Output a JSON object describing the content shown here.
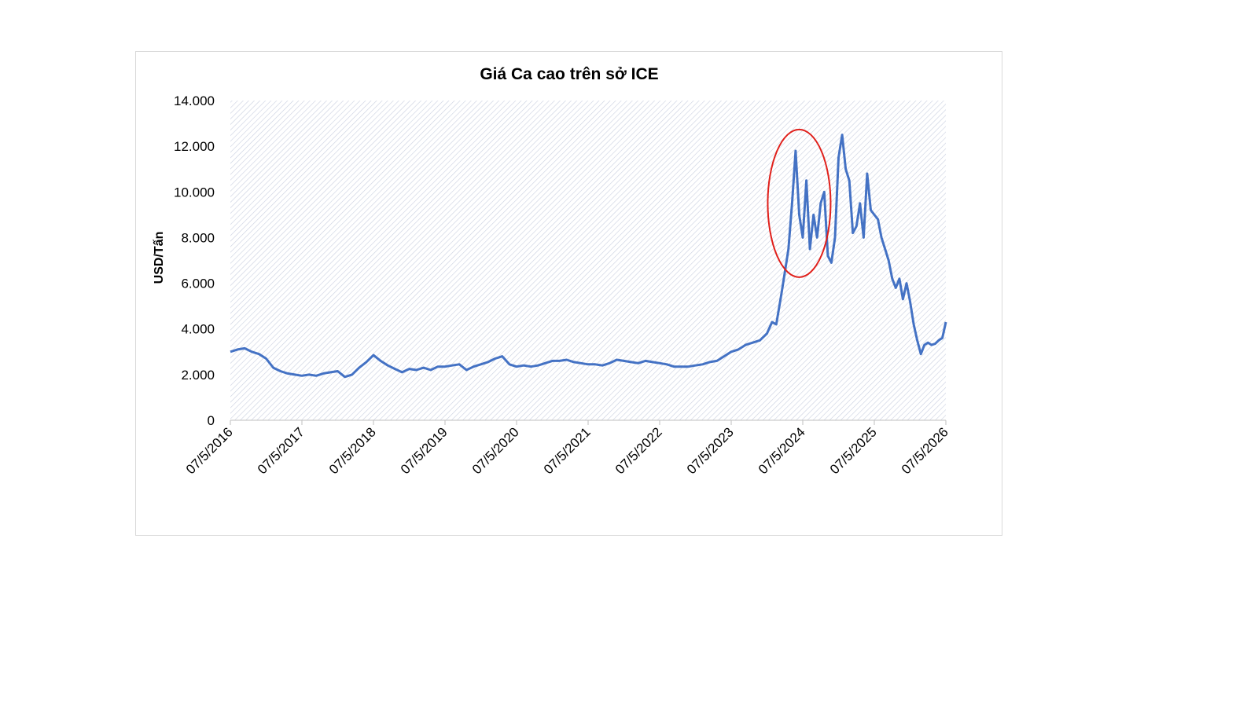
{
  "chart_data": {
    "type": "line",
    "title": "Giá Ca cao trên sở ICE",
    "xlabel": "",
    "ylabel": "USD/Tấn",
    "ylim": [
      0,
      14000
    ],
    "yticks": [
      "0",
      "2.000",
      "4.000",
      "6.000",
      "8.000",
      "10.000",
      "12.000",
      "14.000"
    ],
    "ytick_values": [
      0,
      2000,
      4000,
      6000,
      8000,
      10000,
      12000,
      14000
    ],
    "xticks": [
      "07/5/2016",
      "07/5/2017",
      "07/5/2018",
      "07/5/2019",
      "07/5/2020",
      "07/5/2021",
      "07/5/2022",
      "07/5/2023",
      "07/5/2024",
      "07/5/2025",
      "07/5/2026"
    ],
    "xlim": [
      2016.35,
      2026.35
    ],
    "grid": false,
    "legend": "none",
    "series": [
      {
        "color": "#4472c4",
        "x": [
          2016.35,
          2016.45,
          2016.55,
          2016.65,
          2016.75,
          2016.85,
          2016.95,
          2017.05,
          2017.15,
          2017.25,
          2017.35,
          2017.45,
          2017.55,
          2017.65,
          2017.75,
          2017.85,
          2017.95,
          2018.05,
          2018.15,
          2018.25,
          2018.35,
          2018.45,
          2018.55,
          2018.65,
          2018.75,
          2018.85,
          2018.95,
          2019.05,
          2019.15,
          2019.25,
          2019.35,
          2019.45,
          2019.55,
          2019.65,
          2019.75,
          2019.85,
          2019.95,
          2020.05,
          2020.15,
          2020.25,
          2020.35,
          2020.45,
          2020.55,
          2020.65,
          2020.75,
          2020.85,
          2020.95,
          2021.05,
          2021.15,
          2021.25,
          2021.35,
          2021.45,
          2021.55,
          2021.65,
          2021.75,
          2021.85,
          2021.95,
          2022.05,
          2022.15,
          2022.25,
          2022.35,
          2022.45,
          2022.55,
          2022.65,
          2022.75,
          2022.85,
          2022.95,
          2023.05,
          2023.15,
          2023.25,
          2023.35,
          2023.45,
          2023.55,
          2023.65,
          2023.75,
          2023.85,
          2023.92,
          2023.98,
          2024.05,
          2024.1,
          2024.15,
          2024.2,
          2024.25,
          2024.3,
          2024.35,
          2024.4,
          2024.45,
          2024.5,
          2024.55,
          2024.6,
          2024.65,
          2024.7,
          2024.75,
          2024.8,
          2024.85,
          2024.9,
          2024.95,
          2025.0,
          2025.05,
          2025.1,
          2025.15,
          2025.2,
          2025.25,
          2025.3,
          2025.35,
          2025.4,
          2025.45,
          2025.5,
          2025.55,
          2025.6,
          2025.65,
          2025.7,
          2025.75,
          2025.8,
          2025.85,
          2025.9,
          2025.95,
          2026.0,
          2026.05,
          2026.1,
          2026.15,
          2026.2,
          2026.25,
          2026.3,
          2026.35
        ],
        "y": [
          3000,
          3100,
          3150,
          3000,
          2900,
          2700,
          2300,
          2150,
          2050,
          2000,
          1950,
          2000,
          1950,
          2050,
          2100,
          2150,
          1900,
          2000,
          2300,
          2550,
          2850,
          2600,
          2400,
          2250,
          2100,
          2250,
          2200,
          2300,
          2200,
          2350,
          2350,
          2400,
          2450,
          2200,
          2350,
          2450,
          2550,
          2700,
          2800,
          2450,
          2350,
          2400,
          2350,
          2400,
          2500,
          2600,
          2600,
          2650,
          2550,
          2500,
          2450,
          2450,
          2400,
          2500,
          2650,
          2600,
          2550,
          2500,
          2600,
          2550,
          2500,
          2450,
          2350,
          2350,
          2350,
          2400,
          2450,
          2550,
          2600,
          2800,
          3000,
          3100,
          3300,
          3400,
          3500,
          3800,
          4300,
          4200,
          5500,
          6500,
          7500,
          9500,
          11800,
          9000,
          8000,
          10500,
          7500,
          9000,
          8000,
          9500,
          10000,
          7200,
          6900,
          8000,
          11500,
          12500,
          11000,
          10500,
          8200,
          8500,
          9500,
          8000,
          10800,
          9200,
          9000,
          8800,
          8000,
          7500,
          7000,
          6200,
          5800,
          6200,
          5300,
          6000,
          5200,
          4200,
          3500,
          2900,
          3300,
          3400,
          3300,
          3350,
          3500,
          3600,
          4300
        ]
      }
    ],
    "annotations": [
      {
        "type": "ellipse",
        "cx": 2024.3,
        "cy": 9500,
        "color": "#e0201b"
      }
    ]
  }
}
